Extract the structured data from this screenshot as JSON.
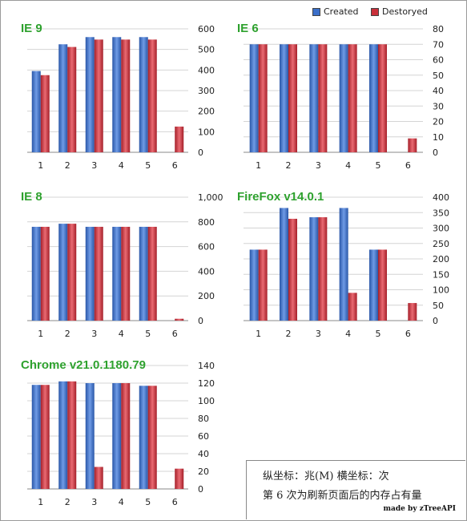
{
  "legend": {
    "created": "Created",
    "destroyed": "Destoryed",
    "created_color": "#3a6fc9",
    "destroyed_color": "#c9303a"
  },
  "notes": {
    "line1": "纵坐标：兆(M)    横坐标：次",
    "line2": "第 6 次为刷新页面后的内存占有量",
    "credit": "made by zTreeAPI"
  },
  "chart_data": [
    {
      "type": "bar",
      "title": "IE 9",
      "categories": [
        "1",
        "2",
        "3",
        "4",
        "5",
        "6"
      ],
      "series": [
        {
          "name": "Created",
          "values": [
            395,
            525,
            560,
            560,
            560,
            0
          ]
        },
        {
          "name": "Destoryed",
          "values": [
            375,
            512,
            548,
            548,
            548,
            125
          ]
        }
      ],
      "ylim": [
        0,
        600
      ],
      "yticks": [
        "0",
        "100",
        "200",
        "300",
        "400",
        "500",
        "600"
      ],
      "grid": true
    },
    {
      "type": "bar",
      "title": "IE 6",
      "categories": [
        "1",
        "2",
        "3",
        "4",
        "5",
        "6"
      ],
      "series": [
        {
          "name": "Created",
          "values": [
            70,
            70,
            70,
            70,
            70,
            0
          ]
        },
        {
          "name": "Destoryed",
          "values": [
            70,
            70,
            70,
            70,
            70,
            9
          ]
        }
      ],
      "ylim": [
        0,
        80
      ],
      "yticks": [
        "0",
        "10",
        "20",
        "30",
        "40",
        "50",
        "60",
        "70",
        "80"
      ],
      "grid": true
    },
    {
      "type": "bar",
      "title": "IE 8",
      "categories": [
        "1",
        "2",
        "3",
        "4",
        "5",
        "6"
      ],
      "series": [
        {
          "name": "Created",
          "values": [
            760,
            785,
            760,
            760,
            760,
            0
          ]
        },
        {
          "name": "Destoryed",
          "values": [
            760,
            785,
            760,
            760,
            760,
            15
          ]
        }
      ],
      "ylim": [
        0,
        1000
      ],
      "yticks": [
        "0",
        "200",
        "400",
        "600",
        "800",
        "1,000"
      ],
      "grid": true
    },
    {
      "type": "bar",
      "title": "FireFox v14.0.1",
      "categories": [
        "1",
        "2",
        "3",
        "4",
        "5",
        "6"
      ],
      "series": [
        {
          "name": "Created",
          "values": [
            230,
            365,
            335,
            365,
            230,
            0
          ]
        },
        {
          "name": "Destoryed",
          "values": [
            230,
            330,
            335,
            90,
            230,
            57
          ]
        }
      ],
      "ylim": [
        0,
        400
      ],
      "yticks": [
        "0",
        "50",
        "100",
        "150",
        "200",
        "250",
        "300",
        "350",
        "400"
      ],
      "grid": true
    },
    {
      "type": "bar",
      "title": "Chrome v21.0.1180.79",
      "categories": [
        "1",
        "2",
        "3",
        "4",
        "5",
        "6"
      ],
      "series": [
        {
          "name": "Created",
          "values": [
            118,
            122,
            120,
            120,
            117,
            0
          ]
        },
        {
          "name": "Destoryed",
          "values": [
            118,
            122,
            25,
            120,
            117,
            23
          ]
        }
      ],
      "ylim": [
        0,
        140
      ],
      "yticks": [
        "0",
        "20",
        "40",
        "60",
        "80",
        "100",
        "120",
        "140"
      ],
      "grid": true
    }
  ]
}
